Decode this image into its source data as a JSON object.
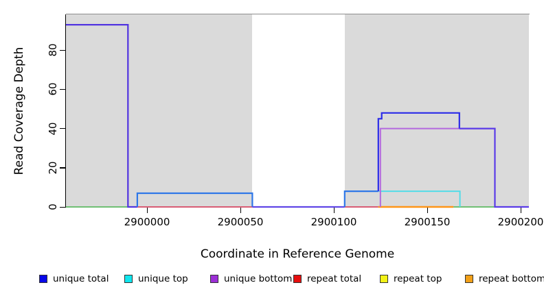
{
  "figure": {
    "y_axis": {
      "title": "Read Coverage Depth",
      "tick_labels": [
        "0",
        "20",
        "40",
        "60",
        "80"
      ],
      "tick_values": [
        0,
        20,
        40,
        60,
        80
      ]
    },
    "x_axis": {
      "title": "Coordinate in Reference Genome",
      "tick_labels": [
        "2900000",
        "2900050",
        "2900100",
        "2900150",
        "2900200"
      ],
      "tick_values": [
        2900000,
        2900050,
        2900100,
        2900150,
        2900200
      ]
    },
    "legend": {
      "items": [
        {
          "label": "unique total",
          "color": "#0808E8"
        },
        {
          "label": "unique top",
          "color": "#10E6EE"
        },
        {
          "label": "unique bottom",
          "color": "#9C2FD6"
        },
        {
          "label": "repeat total",
          "color": "#E60E0E"
        },
        {
          "label": "repeat top",
          "color": "#F2F216"
        },
        {
          "label": "repeat bottom",
          "color": "#F2A018"
        }
      ]
    }
  },
  "chart_data": {
    "type": "line",
    "subtype": "step-coverage",
    "title": "",
    "xlabel": "Coordinate in Reference Genome",
    "ylabel": "Read Coverage Depth",
    "xlim": [
      2899956.6,
      2900204.4
    ],
    "ylim": [
      0,
      98.3
    ],
    "x_ticks": [
      2900000,
      2900050,
      2900100,
      2900150,
      2900200
    ],
    "y_ticks": [
      0,
      20,
      40,
      60,
      80
    ],
    "grid": false,
    "legend_position": "bottom",
    "background": {
      "plot_bg": "#DADADA",
      "gap_bg": "#FFFFFF",
      "gray_spans": [
        [
          2899956.6,
          2900056.4
        ],
        [
          2900105.8,
          2900204.4
        ]
      ],
      "white_gap_span": [
        2900056.4,
        2900105.8
      ],
      "top_border_color": "#8C8C8C"
    },
    "series": [
      {
        "name": "unique total",
        "color": "#0000FF",
        "steps": [
          {
            "x0": 2899957,
            "x1": 2899990,
            "y": 93
          },
          {
            "x0": 2899990,
            "x1": 2899995,
            "y": 0
          },
          {
            "x0": 2899995,
            "x1": 2900056,
            "y": 7
          },
          {
            "x0": 2900056,
            "x1": 2900106,
            "y": 0
          },
          {
            "x0": 2900106,
            "x1": 2900124,
            "y": 8
          },
          {
            "x0": 2900124,
            "x1": 2900126,
            "y": 45
          },
          {
            "x0": 2900126,
            "x1": 2900167,
            "y": 48
          },
          {
            "x0": 2900167,
            "x1": 2900186,
            "y": 40
          },
          {
            "x0": 2900186,
            "x1": 2900204,
            "y": 0
          }
        ]
      },
      {
        "name": "unique top",
        "color": "#00FFFF",
        "steps": [
          {
            "x0": 2900106,
            "x1": 2900167,
            "y": 8
          }
        ]
      },
      {
        "name": "unique bottom",
        "color": "#A020F0",
        "steps": [
          {
            "x0": 2900125,
            "x1": 2900186,
            "y": 40
          }
        ]
      },
      {
        "name": "repeat total",
        "color": "#FF0000",
        "steps": [
          {
            "x0": 2899995,
            "x1": 2900056,
            "y": 0
          },
          {
            "x0": 2900106,
            "x1": 2900124,
            "y": 0
          }
        ]
      },
      {
        "name": "repeat top",
        "color": "#FFFF00",
        "steps": [
          {
            "x0": 2899957,
            "x1": 2899990,
            "y": 0
          },
          {
            "x0": 2900164,
            "x1": 2900186,
            "y": 0
          }
        ]
      },
      {
        "name": "repeat bottom",
        "color": "#FFA500",
        "steps": [
          {
            "x0": 2900124,
            "x1": 2900164,
            "y": 0
          }
        ]
      }
    ],
    "render_lines": [
      {
        "name": "baseline-green-left",
        "color": "#6FBF73",
        "width": 2,
        "points": [
          [
            2899956.6,
            0
          ],
          [
            2899989.8,
            0
          ]
        ]
      },
      {
        "name": "baseline-red-left",
        "color": "#D85C74",
        "width": 2,
        "points": [
          [
            2899994.8,
            0
          ],
          [
            2900056.4,
            0
          ]
        ]
      },
      {
        "name": "baseline-red-right",
        "color": "#D85C74",
        "width": 2,
        "points": [
          [
            2900105.8,
            0
          ],
          [
            2900123.8,
            0
          ]
        ]
      },
      {
        "name": "baseline-green-right",
        "color": "#6FBF73",
        "width": 2,
        "points": [
          [
            2900164,
            0
          ],
          [
            2900186.2,
            0
          ]
        ]
      },
      {
        "name": "unique-top-cyan-box",
        "color": "#52DCE8",
        "width": 2,
        "points": [
          [
            2900124,
            8
          ],
          [
            2900167.5,
            8
          ],
          [
            2900167.5,
            0
          ]
        ]
      },
      {
        "name": "baseline-orange",
        "color": "#FF9518",
        "width": 2.4,
        "points": [
          [
            2900123.8,
            0
          ],
          [
            2900164,
            0
          ]
        ]
      },
      {
        "name": "unique-bottom-purple",
        "color": "#B368DE",
        "width": 2,
        "points": [
          [
            2900124.9,
            0
          ],
          [
            2900124.9,
            40
          ],
          [
            2900186,
            40
          ]
        ]
      },
      {
        "name": "total-93-violet",
        "color": "#5134E0",
        "width": 2.2,
        "points": [
          [
            2899956.6,
            93
          ],
          [
            2899989.8,
            93
          ],
          [
            2899989.8,
            0
          ],
          [
            2899994.8,
            0
          ]
        ]
      },
      {
        "name": "total-box7-blue",
        "color": "#2E77E8",
        "width": 2.2,
        "points": [
          [
            2899994.8,
            0
          ],
          [
            2899994.8,
            7
          ],
          [
            2900056.4,
            7
          ],
          [
            2900056.4,
            0
          ]
        ]
      },
      {
        "name": "total-gap-zero",
        "color": "#5F46E6",
        "width": 2.2,
        "points": [
          [
            2900056.4,
            0
          ],
          [
            2900105.8,
            0
          ]
        ]
      },
      {
        "name": "total-box8-blue",
        "color": "#2E77E8",
        "width": 2.2,
        "points": [
          [
            2900105.8,
            0
          ],
          [
            2900105.8,
            8
          ],
          [
            2900123.8,
            8
          ]
        ]
      },
      {
        "name": "total-high-blue",
        "color": "#2B2BE8",
        "width": 2.2,
        "points": [
          [
            2900123.8,
            8
          ],
          [
            2900123.8,
            45
          ],
          [
            2900125.6,
            45
          ],
          [
            2900125.6,
            48
          ],
          [
            2900167.2,
            48
          ],
          [
            2900167.2,
            40
          ]
        ]
      },
      {
        "name": "total-tail-violet",
        "color": "#5A3BE8",
        "width": 2.2,
        "points": [
          [
            2900167.2,
            40
          ],
          [
            2900186.2,
            40
          ],
          [
            2900186.2,
            0
          ],
          [
            2900204.4,
            0
          ]
        ]
      }
    ]
  }
}
